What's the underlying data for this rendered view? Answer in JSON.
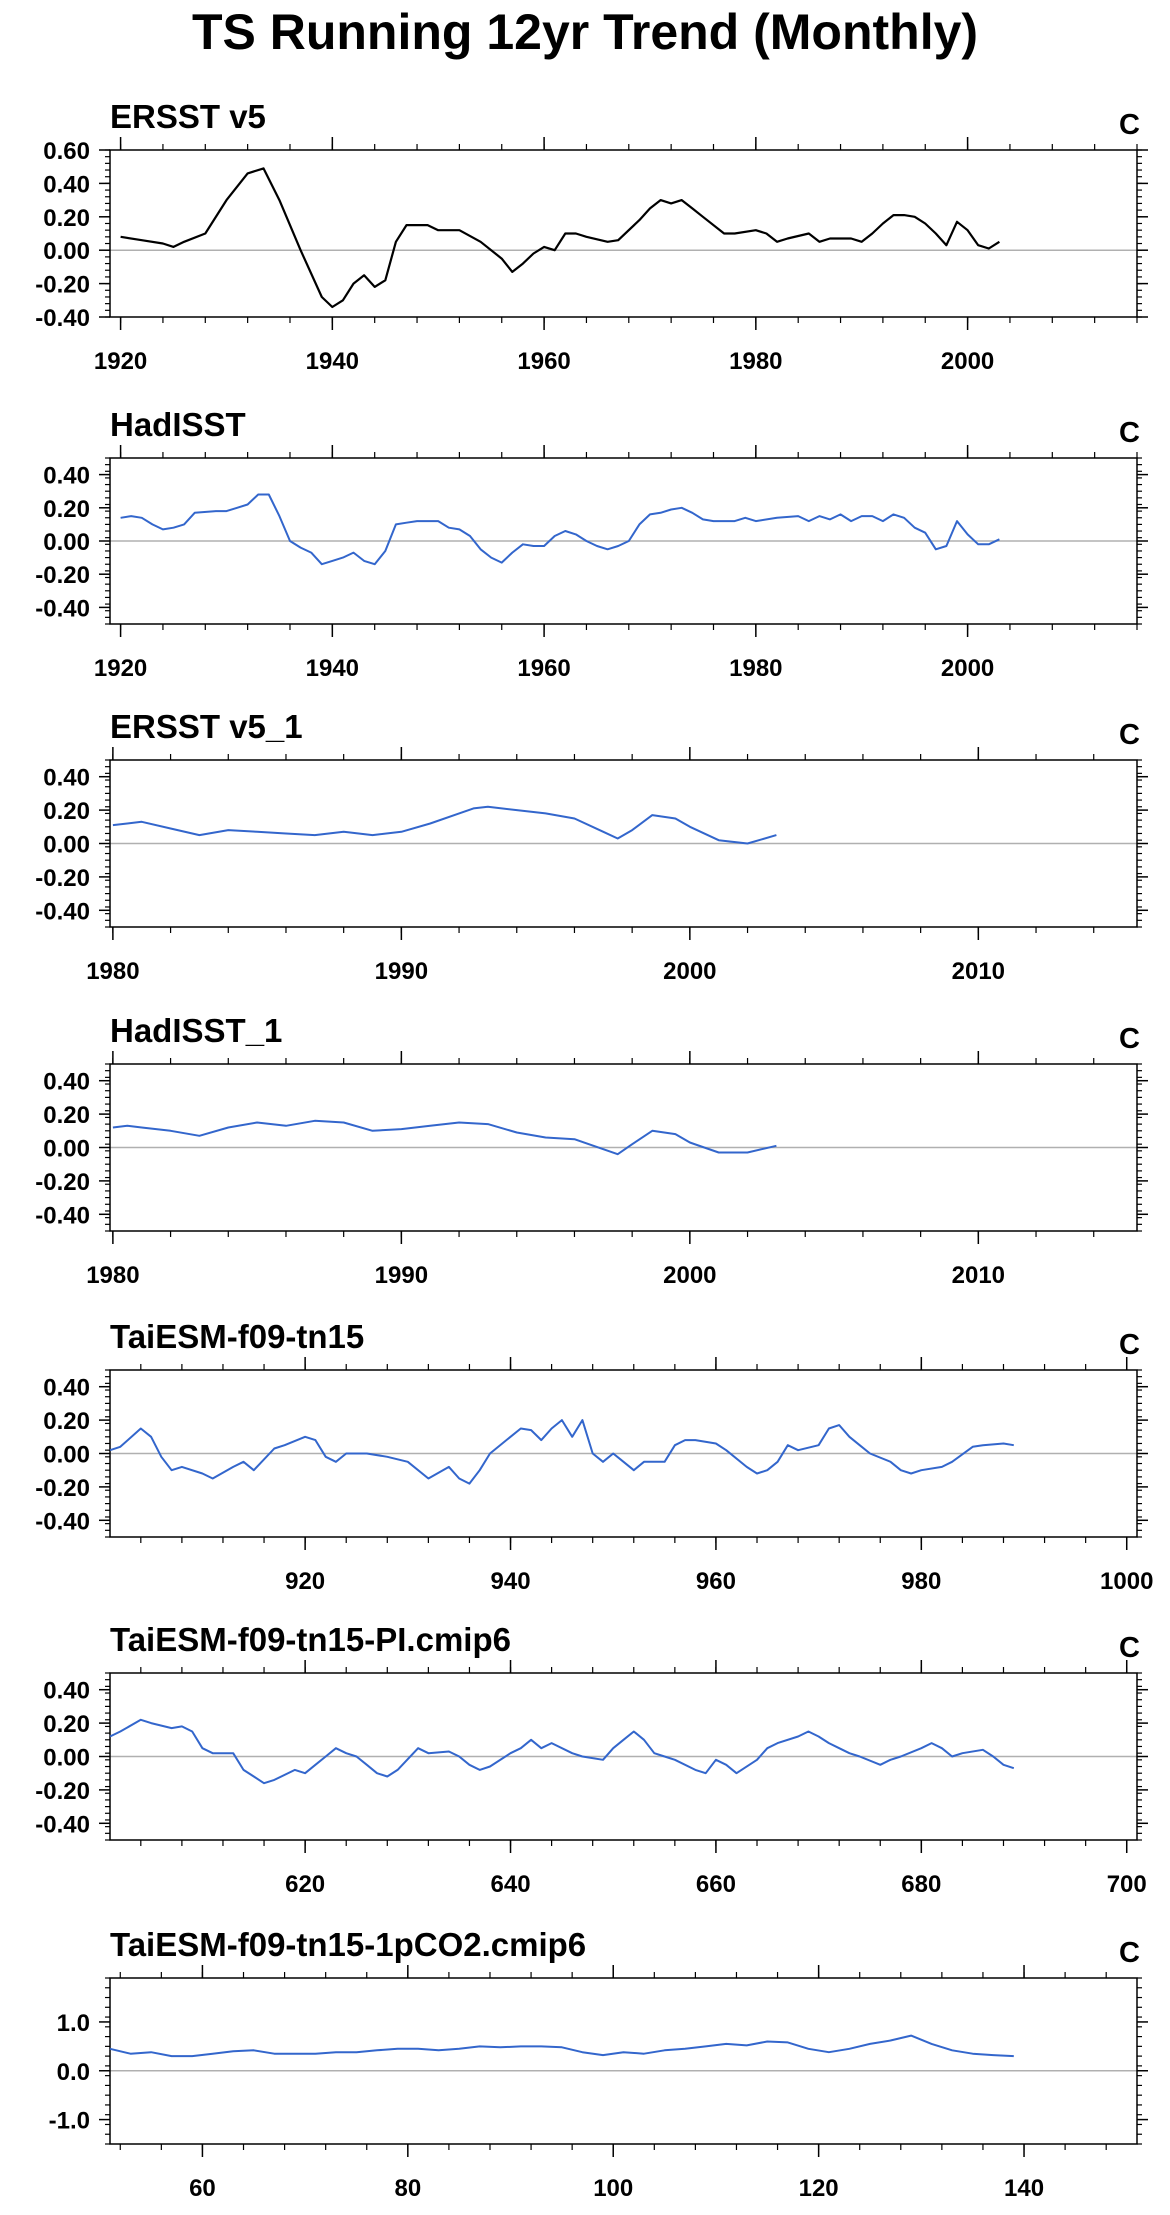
{
  "title": "TS Running 12yr Trend (Monthly)",
  "chart_data": [
    {
      "type": "line",
      "title": "ERSST v5",
      "units": "C",
      "color": "#000000",
      "xlim": [
        1919,
        2016
      ],
      "ylim": [
        -0.4,
        0.6
      ],
      "xticks": [
        1920,
        1940,
        1960,
        1980,
        2000
      ],
      "yticks": [
        -0.4,
        -0.2,
        0.0,
        0.2,
        0.4,
        0.6
      ],
      "ytick_labels": [
        "-0.40",
        "-0.20",
        "0.00",
        "0.20",
        "0.40",
        "0.60"
      ],
      "x": [
        1920,
        1922,
        1924,
        1925,
        1926,
        1928,
        1930,
        1932,
        1933.5,
        1935,
        1937,
        1939,
        1940,
        1941,
        1942,
        1943,
        1944,
        1945,
        1946,
        1947,
        1949,
        1950,
        1952,
        1954,
        1956,
        1957,
        1958,
        1959,
        1960,
        1961,
        1962,
        1963,
        1964,
        1966,
        1967,
        1969,
        1970,
        1971,
        1972,
        1973,
        1974,
        1975,
        1977,
        1978,
        1980,
        1981,
        1982,
        1983,
        1985,
        1986,
        1987,
        1989,
        1990,
        1991,
        1992,
        1993,
        1994,
        1995,
        1996,
        1997,
        1998,
        1999,
        2000,
        2001,
        2002,
        2003
      ],
      "y": [
        0.08,
        0.06,
        0.04,
        0.02,
        0.05,
        0.1,
        0.3,
        0.46,
        0.49,
        0.3,
        0.0,
        -0.28,
        -0.34,
        -0.3,
        -0.2,
        -0.15,
        -0.22,
        -0.18,
        0.05,
        0.15,
        0.15,
        0.12,
        0.12,
        0.05,
        -0.05,
        -0.13,
        -0.08,
        -0.02,
        0.02,
        0.0,
        0.1,
        0.1,
        0.08,
        0.05,
        0.06,
        0.18,
        0.25,
        0.3,
        0.28,
        0.3,
        0.25,
        0.2,
        0.1,
        0.1,
        0.12,
        0.1,
        0.05,
        0.07,
        0.1,
        0.05,
        0.07,
        0.07,
        0.05,
        0.1,
        0.16,
        0.21,
        0.21,
        0.2,
        0.16,
        0.1,
        0.03,
        0.17,
        0.12,
        0.03,
        0.01,
        0.05
      ]
    },
    {
      "type": "line",
      "title": "HadISST",
      "units": "C",
      "color": "#3366cc",
      "xlim": [
        1919,
        2016
      ],
      "ylim": [
        -0.5,
        0.5
      ],
      "xticks": [
        1920,
        1940,
        1960,
        1980,
        2000
      ],
      "yticks": [
        -0.4,
        -0.2,
        0.0,
        0.2,
        0.4
      ],
      "ytick_labels": [
        "-0.40",
        "-0.20",
        "0.00",
        "0.20",
        "0.40"
      ],
      "x": [
        1920,
        1921,
        1922,
        1923,
        1924,
        1925,
        1926,
        1927,
        1929,
        1930,
        1931,
        1932,
        1933,
        1934,
        1935,
        1936,
        1937,
        1938,
        1939,
        1940,
        1941,
        1942,
        1943,
        1944,
        1945,
        1946,
        1947,
        1948,
        1950,
        1951,
        1952,
        1953,
        1954,
        1955,
        1956,
        1957,
        1958,
        1959,
        1960,
        1961,
        1962,
        1963,
        1964,
        1965,
        1966,
        1967,
        1968,
        1969,
        1970,
        1971,
        1972,
        1973,
        1974,
        1975,
        1976,
        1978,
        1979,
        1980,
        1982,
        1984,
        1985,
        1986,
        1987,
        1988,
        1989,
        1990,
        1991,
        1992,
        1993,
        1994,
        1995,
        1996,
        1997,
        1998,
        1999,
        2000,
        2001,
        2002,
        2003
      ],
      "y": [
        0.14,
        0.15,
        0.14,
        0.1,
        0.07,
        0.08,
        0.1,
        0.17,
        0.18,
        0.18,
        0.2,
        0.22,
        0.28,
        0.28,
        0.15,
        0.0,
        -0.04,
        -0.07,
        -0.14,
        -0.12,
        -0.1,
        -0.07,
        -0.12,
        -0.14,
        -0.06,
        0.1,
        0.11,
        0.12,
        0.12,
        0.08,
        0.07,
        0.03,
        -0.05,
        -0.1,
        -0.13,
        -0.07,
        -0.02,
        -0.03,
        -0.03,
        0.03,
        0.06,
        0.04,
        0.0,
        -0.03,
        -0.05,
        -0.03,
        0.0,
        0.1,
        0.16,
        0.17,
        0.19,
        0.2,
        0.17,
        0.13,
        0.12,
        0.12,
        0.14,
        0.12,
        0.14,
        0.15,
        0.12,
        0.15,
        0.13,
        0.16,
        0.12,
        0.15,
        0.15,
        0.12,
        0.16,
        0.14,
        0.08,
        0.05,
        -0.05,
        -0.03,
        0.12,
        0.04,
        -0.02,
        -0.02,
        0.01
      ]
    },
    {
      "type": "line",
      "title": "ERSST v5_1",
      "units": "C",
      "color": "#3366cc",
      "xlim": [
        1979.9,
        2015.5
      ],
      "ylim": [
        -0.5,
        0.5
      ],
      "xticks": [
        1980,
        1990,
        2000,
        2010
      ],
      "yticks": [
        -0.4,
        -0.2,
        0.0,
        0.2,
        0.4
      ],
      "ytick_labels": [
        "-0.40",
        "-0.20",
        "0.00",
        "0.20",
        "0.40"
      ],
      "x": [
        1980,
        1980.5,
        1981,
        1982,
        1983,
        1984,
        1985,
        1986,
        1987,
        1988,
        1989,
        1990,
        1991,
        1992,
        1992.5,
        1993,
        1994,
        1995,
        1996,
        1997,
        1997.5,
        1998,
        1998.7,
        1999.5,
        2000,
        2001,
        2002,
        2003
      ],
      "y": [
        0.11,
        0.12,
        0.13,
        0.09,
        0.05,
        0.08,
        0.07,
        0.06,
        0.05,
        0.07,
        0.05,
        0.07,
        0.12,
        0.18,
        0.21,
        0.22,
        0.2,
        0.18,
        0.15,
        0.07,
        0.03,
        0.08,
        0.17,
        0.15,
        0.1,
        0.02,
        0.0,
        0.05
      ]
    },
    {
      "type": "line",
      "title": "HadISST_1",
      "units": "C",
      "color": "#3366cc",
      "xlim": [
        1979.9,
        2015.5
      ],
      "ylim": [
        -0.5,
        0.5
      ],
      "xticks": [
        1980,
        1990,
        2000,
        2010
      ],
      "yticks": [
        -0.4,
        -0.2,
        0.0,
        0.2,
        0.4
      ],
      "ytick_labels": [
        "-0.40",
        "-0.20",
        "0.00",
        "0.20",
        "0.40"
      ],
      "x": [
        1980,
        1980.5,
        1981,
        1982,
        1983,
        1984,
        1985,
        1986,
        1987,
        1988,
        1989,
        1990,
        1991,
        1992,
        1993,
        1994,
        1995,
        1996,
        1997,
        1997.5,
        1998,
        1998.7,
        1999.5,
        2000,
        2001,
        2002,
        2003
      ],
      "y": [
        0.12,
        0.13,
        0.12,
        0.1,
        0.07,
        0.12,
        0.15,
        0.13,
        0.16,
        0.15,
        0.1,
        0.11,
        0.13,
        0.15,
        0.14,
        0.09,
        0.06,
        0.05,
        -0.01,
        -0.04,
        0.02,
        0.1,
        0.08,
        0.03,
        -0.03,
        -0.03,
        0.01
      ]
    },
    {
      "type": "line",
      "title": "TaiESM-f09-tn15",
      "units": "C",
      "color": "#3366cc",
      "xlim": [
        901,
        1001
      ],
      "ylim": [
        -0.5,
        0.5
      ],
      "xticks": [
        920,
        940,
        960,
        980,
        1000
      ],
      "yticks": [
        -0.4,
        -0.2,
        0.0,
        0.2,
        0.4
      ],
      "ytick_labels": [
        "-0.40",
        "-0.20",
        "0.00",
        "0.20",
        "0.40"
      ],
      "x": [
        901,
        902,
        904,
        905,
        906,
        907,
        908,
        910,
        911,
        913,
        914,
        915,
        917,
        918,
        920,
        921,
        922,
        923,
        924,
        926,
        928,
        930,
        932,
        934,
        935,
        936,
        937,
        938,
        940,
        941,
        942,
        943,
        944,
        945,
        946,
        947,
        948,
        949,
        950,
        951,
        952,
        953,
        955,
        956,
        957,
        958,
        960,
        961,
        963,
        964,
        965,
        966,
        967,
        968,
        970,
        971,
        972,
        973,
        974,
        975,
        977,
        978,
        979,
        980,
        982,
        983,
        985,
        986,
        988,
        989
      ],
      "y": [
        0.02,
        0.04,
        0.15,
        0.1,
        -0.02,
        -0.1,
        -0.08,
        -0.12,
        -0.15,
        -0.08,
        -0.05,
        -0.1,
        0.03,
        0.05,
        0.1,
        0.08,
        -0.02,
        -0.05,
        0.0,
        0.0,
        -0.02,
        -0.05,
        -0.15,
        -0.08,
        -0.15,
        -0.18,
        -0.1,
        0.0,
        0.1,
        0.15,
        0.14,
        0.08,
        0.15,
        0.2,
        0.1,
        0.2,
        0.0,
        -0.05,
        0.0,
        -0.05,
        -0.1,
        -0.05,
        -0.05,
        0.05,
        0.08,
        0.08,
        0.06,
        0.02,
        -0.08,
        -0.12,
        -0.1,
        -0.05,
        0.05,
        0.02,
        0.05,
        0.15,
        0.17,
        0.1,
        0.05,
        0.0,
        -0.05,
        -0.1,
        -0.12,
        -0.1,
        -0.08,
        -0.05,
        0.04,
        0.05,
        0.06,
        0.05
      ]
    },
    {
      "type": "line",
      "title": "TaiESM-f09-tn15-PI.cmip6",
      "units": "C",
      "color": "#3366cc",
      "xlim": [
        601,
        701
      ],
      "ylim": [
        -0.5,
        0.5
      ],
      "xticks": [
        620,
        640,
        660,
        680,
        700
      ],
      "yticks": [
        -0.4,
        -0.2,
        0.0,
        0.2,
        0.4
      ],
      "ytick_labels": [
        "-0.40",
        "-0.20",
        "0.00",
        "0.20",
        "0.40"
      ],
      "x": [
        601,
        602,
        604,
        605,
        607,
        608,
        609,
        610,
        611,
        613,
        614,
        615,
        616,
        617,
        619,
        620,
        621,
        622,
        623,
        624,
        625,
        626,
        627,
        628,
        629,
        631,
        632,
        634,
        635,
        636,
        637,
        638,
        640,
        641,
        642,
        643,
        644,
        646,
        647,
        649,
        650,
        651,
        652,
        653,
        654,
        655,
        656,
        658,
        659,
        660,
        661,
        662,
        664,
        665,
        666,
        668,
        669,
        670,
        671,
        672,
        673,
        674,
        676,
        677,
        678,
        680,
        681,
        682,
        683,
        684,
        686,
        687,
        688,
        689
      ],
      "y": [
        0.12,
        0.15,
        0.22,
        0.2,
        0.17,
        0.18,
        0.15,
        0.05,
        0.02,
        0.02,
        -0.08,
        -0.12,
        -0.16,
        -0.14,
        -0.08,
        -0.1,
        -0.05,
        0.0,
        0.05,
        0.02,
        0.0,
        -0.05,
        -0.1,
        -0.12,
        -0.08,
        0.05,
        0.02,
        0.03,
        0.0,
        -0.05,
        -0.08,
        -0.06,
        0.02,
        0.05,
        0.1,
        0.05,
        0.08,
        0.02,
        0.0,
        -0.02,
        0.05,
        0.1,
        0.15,
        0.1,
        0.02,
        0.0,
        -0.02,
        -0.08,
        -0.1,
        -0.02,
        -0.05,
        -0.1,
        -0.02,
        0.05,
        0.08,
        0.12,
        0.15,
        0.12,
        0.08,
        0.05,
        0.02,
        0.0,
        -0.05,
        -0.02,
        0.0,
        0.05,
        0.08,
        0.05,
        0.0,
        0.02,
        0.04,
        0.0,
        -0.05,
        -0.07
      ]
    },
    {
      "type": "line",
      "title": "TaiESM-f09-tn15-1pCO2.cmip6",
      "units": "C",
      "color": "#3366cc",
      "xlim": [
        51,
        151
      ],
      "ylim": [
        -1.5,
        1.9
      ],
      "xticks": [
        60,
        80,
        100,
        120,
        140
      ],
      "yticks": [
        -1.0,
        0.0,
        1.0
      ],
      "ytick_labels": [
        "-1.0",
        "0.0",
        "1.0"
      ],
      "x": [
        51,
        53,
        55,
        57,
        59,
        61,
        63,
        65,
        67,
        69,
        71,
        73,
        75,
        77,
        79,
        81,
        83,
        85,
        87,
        89,
        91,
        93,
        95,
        97,
        99,
        101,
        103,
        105,
        107,
        109,
        111,
        113,
        115,
        117,
        119,
        121,
        123,
        125,
        127,
        129,
        131,
        133,
        135,
        137,
        139
      ],
      "y": [
        0.45,
        0.35,
        0.38,
        0.3,
        0.3,
        0.35,
        0.4,
        0.42,
        0.35,
        0.35,
        0.35,
        0.38,
        0.38,
        0.42,
        0.45,
        0.45,
        0.42,
        0.45,
        0.5,
        0.48,
        0.5,
        0.5,
        0.48,
        0.38,
        0.32,
        0.38,
        0.35,
        0.42,
        0.45,
        0.5,
        0.55,
        0.52,
        0.6,
        0.58,
        0.45,
        0.38,
        0.45,
        0.55,
        0.62,
        0.72,
        0.55,
        0.42,
        0.35,
        0.32,
        0.3
      ]
    }
  ]
}
